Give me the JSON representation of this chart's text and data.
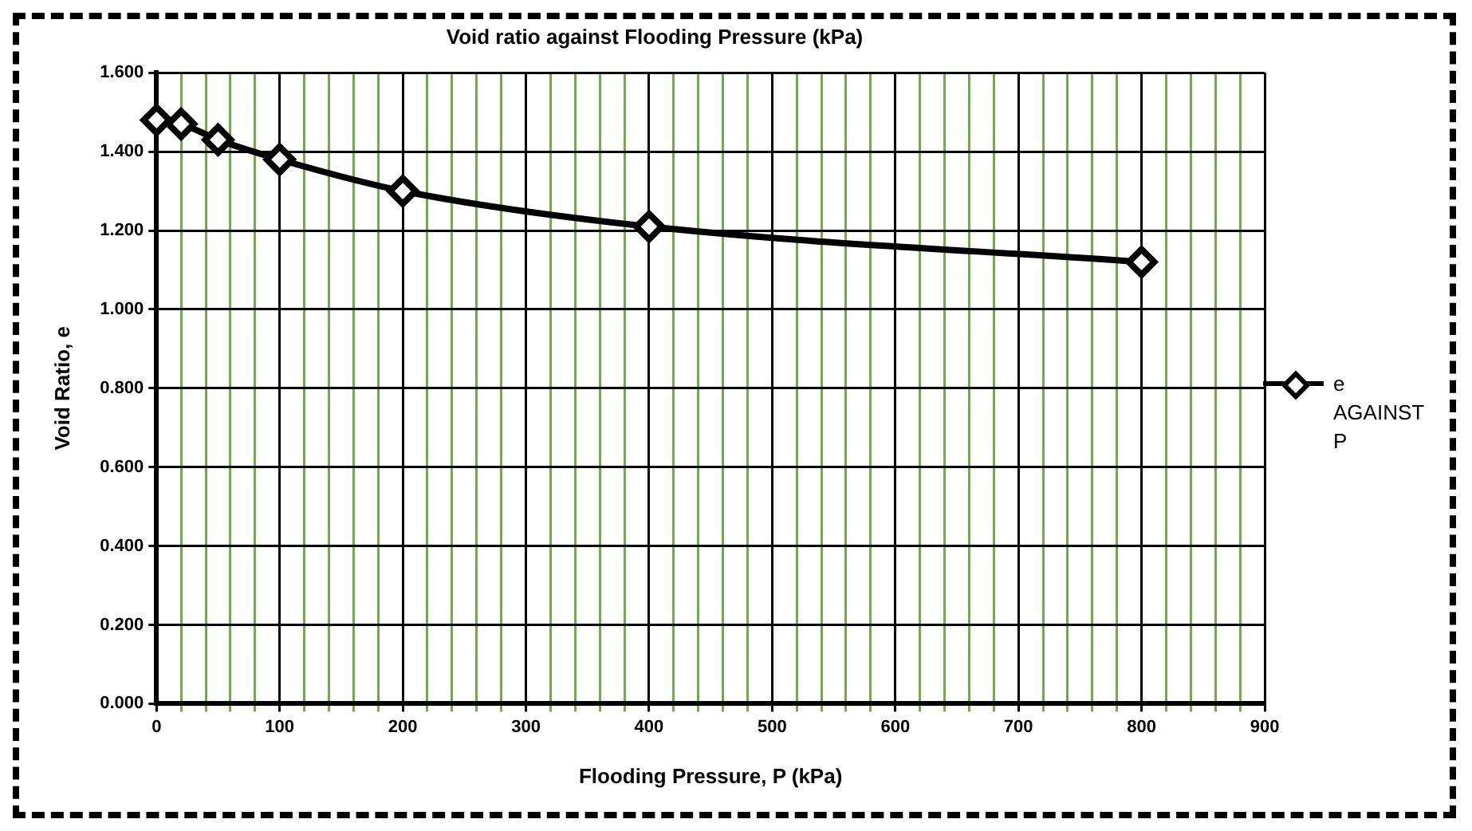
{
  "chart_data": {
    "type": "line",
    "title": "Void ratio against Flooding Pressure (kPa)",
    "xlabel": "Flooding Pressure, P (kPa)",
    "ylabel": "Void Ratio, e",
    "x": [
      0,
      20,
      50,
      100,
      200,
      400,
      800
    ],
    "series": [
      {
        "name": "e AGAINST P",
        "color": "#000000",
        "values": [
          1.48,
          1.47,
          1.43,
          1.38,
          1.3,
          1.21,
          1.12
        ]
      }
    ],
    "xlim": [
      0,
      900
    ],
    "xticks": [
      0,
      {
        "value": 20,
        "label": null
      },
      {
        "value": 40,
        "label": null
      },
      {
        "value": 60,
        "label": null
      },
      {
        "value": 80,
        "label": null
      },
      100,
      {
        "value": 120,
        "label": null
      },
      {
        "value": 140,
        "label": null
      },
      {
        "value": 160,
        "label": null
      },
      {
        "value": 180,
        "label": null
      },
      200,
      {
        "value": 220,
        "label": null
      },
      {
        "value": 240,
        "label": null
      },
      {
        "value": 260,
        "label": null
      },
      {
        "value": 280,
        "label": null
      },
      300,
      {
        "value": 320,
        "label": null
      },
      {
        "value": 340,
        "label": null
      },
      {
        "value": 360,
        "label": null
      },
      {
        "value": 380,
        "label": null
      },
      400,
      {
        "value": 420,
        "label": null
      },
      {
        "value": 440,
        "label": null
      },
      {
        "value": 460,
        "label": null
      },
      {
        "value": 480,
        "label": null
      },
      500,
      {
        "value": 520,
        "label": null
      },
      {
        "value": 540,
        "label": null
      },
      {
        "value": 560,
        "label": null
      },
      {
        "value": 580,
        "label": null
      },
      600,
      {
        "value": 620,
        "label": null
      },
      {
        "value": 640,
        "label": null
      },
      {
        "value": 660,
        "label": null
      },
      {
        "value": 680,
        "label": null
      },
      700,
      {
        "value": 720,
        "label": null
      },
      {
        "value": 740,
        "label": null
      },
      {
        "value": 760,
        "label": null
      },
      {
        "value": 780,
        "label": null
      },
      800,
      {
        "value": 820,
        "label": null
      },
      {
        "value": 840,
        "label": null
      },
      {
        "value": 860,
        "label": null
      },
      {
        "value": 880,
        "label": null
      },
      900
    ],
    "ylim": [
      0,
      1.6
    ],
    "yticks": [
      {
        "value": 0,
        "label": "0.000"
      },
      {
        "value": 0.2,
        "label": "0.200"
      },
      {
        "value": 0.4,
        "label": "0.400"
      },
      {
        "value": 0.6,
        "label": "0.600"
      },
      {
        "value": 0.8,
        "label": "0.800"
      },
      {
        "value": 1,
        "label": "1.000"
      },
      {
        "value": 1.2,
        "label": "1.200"
      },
      {
        "value": 1.4,
        "label": "1.400"
      },
      {
        "value": 1.6,
        "label": "1.600"
      }
    ],
    "grid": true,
    "legend": "right",
    "marker": "diamond",
    "line_style": "solid"
  }
}
